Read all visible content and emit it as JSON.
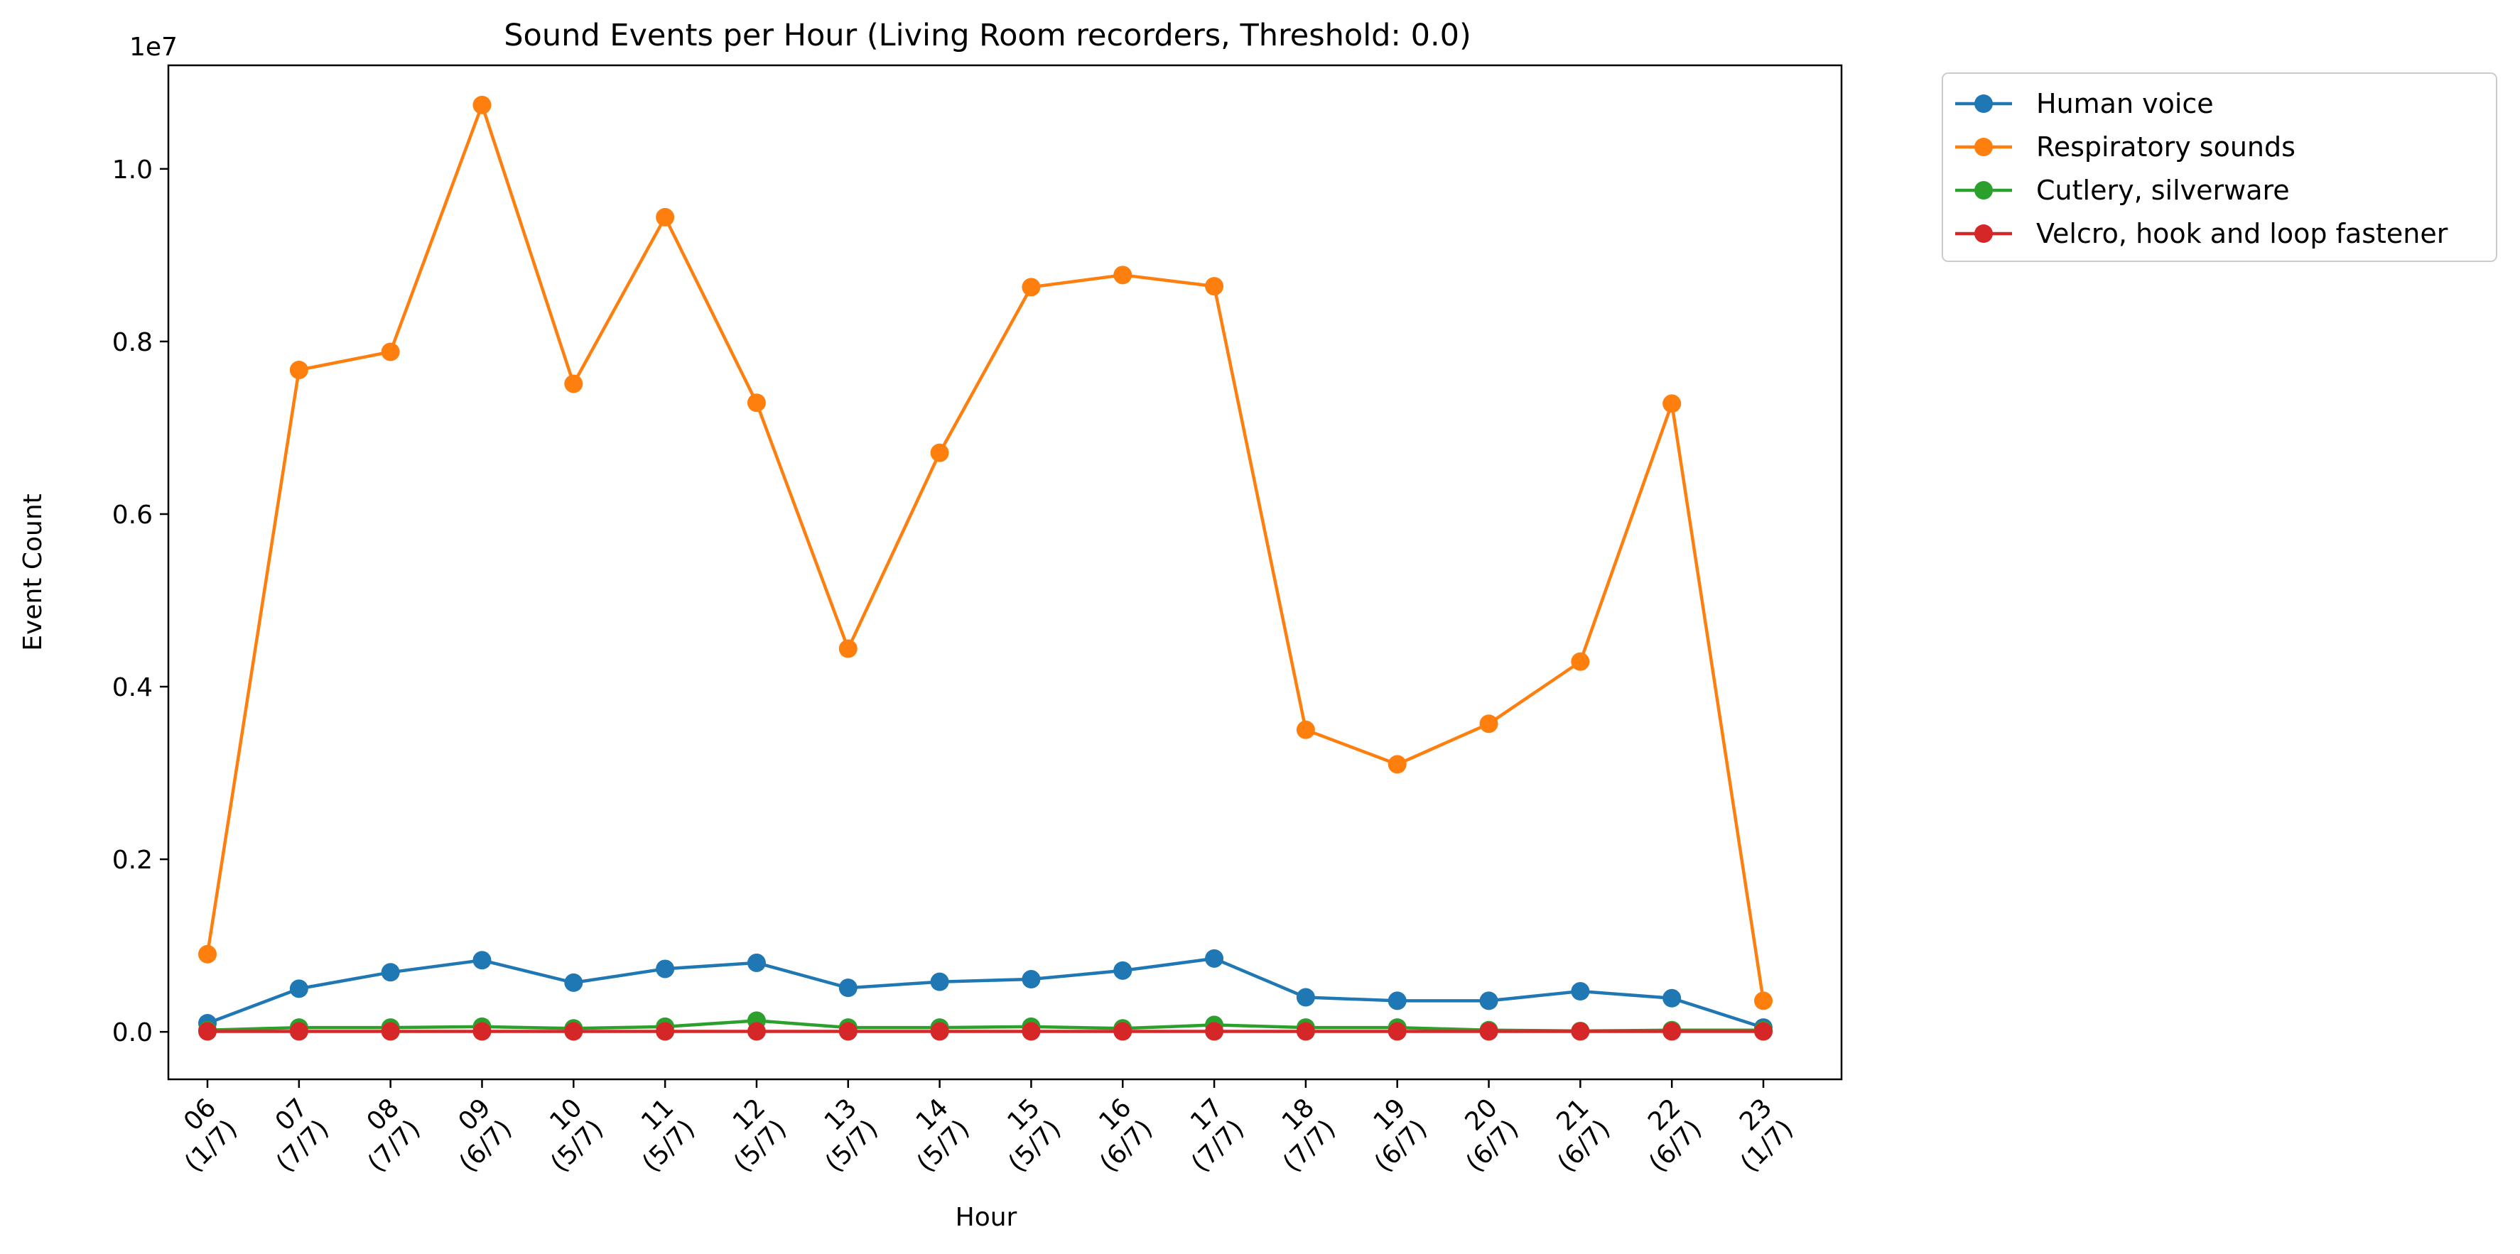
{
  "chart_data": {
    "type": "line",
    "title": "Sound Events per Hour (Living Room recorders, Threshold: 0.0)",
    "xlabel": "Hour",
    "ylabel": "Event Count",
    "y_offset_label": "1e7",
    "y_scale_exponent": 7,
    "ylim": [
      -550000,
      11200000
    ],
    "yticks": [
      0,
      2000000,
      4000000,
      6000000,
      8000000,
      10000000
    ],
    "ytick_labels": [
      "0.0",
      "0.2",
      "0.4",
      "0.6",
      "0.8",
      "1.0"
    ],
    "grid": false,
    "legend_position": "outside-top-right",
    "categories": [
      {
        "hour": "06",
        "recorders": "(1/7)"
      },
      {
        "hour": "07",
        "recorders": "(7/7)"
      },
      {
        "hour": "08",
        "recorders": "(7/7)"
      },
      {
        "hour": "09",
        "recorders": "(6/7)"
      },
      {
        "hour": "10",
        "recorders": "(5/7)"
      },
      {
        "hour": "11",
        "recorders": "(5/7)"
      },
      {
        "hour": "12",
        "recorders": "(5/7)"
      },
      {
        "hour": "13",
        "recorders": "(5/7)"
      },
      {
        "hour": "14",
        "recorders": "(5/7)"
      },
      {
        "hour": "15",
        "recorders": "(5/7)"
      },
      {
        "hour": "16",
        "recorders": "(6/7)"
      },
      {
        "hour": "17",
        "recorders": "(7/7)"
      },
      {
        "hour": "18",
        "recorders": "(7/7)"
      },
      {
        "hour": "19",
        "recorders": "(6/7)"
      },
      {
        "hour": "20",
        "recorders": "(6/7)"
      },
      {
        "hour": "21",
        "recorders": "(6/7)"
      },
      {
        "hour": "22",
        "recorders": "(6/7)"
      },
      {
        "hour": "23",
        "recorders": "(1/7)"
      }
    ],
    "series": [
      {
        "name": "Human voice",
        "color": "#1f77b4",
        "values": [
          100000,
          500000,
          690000,
          830000,
          570000,
          730000,
          800000,
          510000,
          580000,
          610000,
          710000,
          850000,
          400000,
          360000,
          360000,
          470000,
          390000,
          50000
        ]
      },
      {
        "name": "Respiratory sounds",
        "color": "#ff7f0e",
        "values": [
          900000,
          7670000,
          7880000,
          10740000,
          7510000,
          9440000,
          7290000,
          4440000,
          6710000,
          8630000,
          8770000,
          8640000,
          3500000,
          3100000,
          3570000,
          4290000,
          7280000,
          360000
        ]
      },
      {
        "name": "Cutlery, silverware",
        "color": "#2ca02c",
        "values": [
          20000,
          50000,
          50000,
          60000,
          40000,
          60000,
          130000,
          50000,
          50000,
          60000,
          40000,
          80000,
          50000,
          50000,
          20000,
          10000,
          20000,
          20000
        ]
      },
      {
        "name": "Velcro, hook and loop fastener",
        "color": "#d62728",
        "values": [
          5000,
          5000,
          5000,
          5000,
          5000,
          5000,
          5000,
          5000,
          5000,
          5000,
          5000,
          5000,
          5000,
          5000,
          5000,
          5000,
          5000,
          5000
        ]
      }
    ]
  }
}
